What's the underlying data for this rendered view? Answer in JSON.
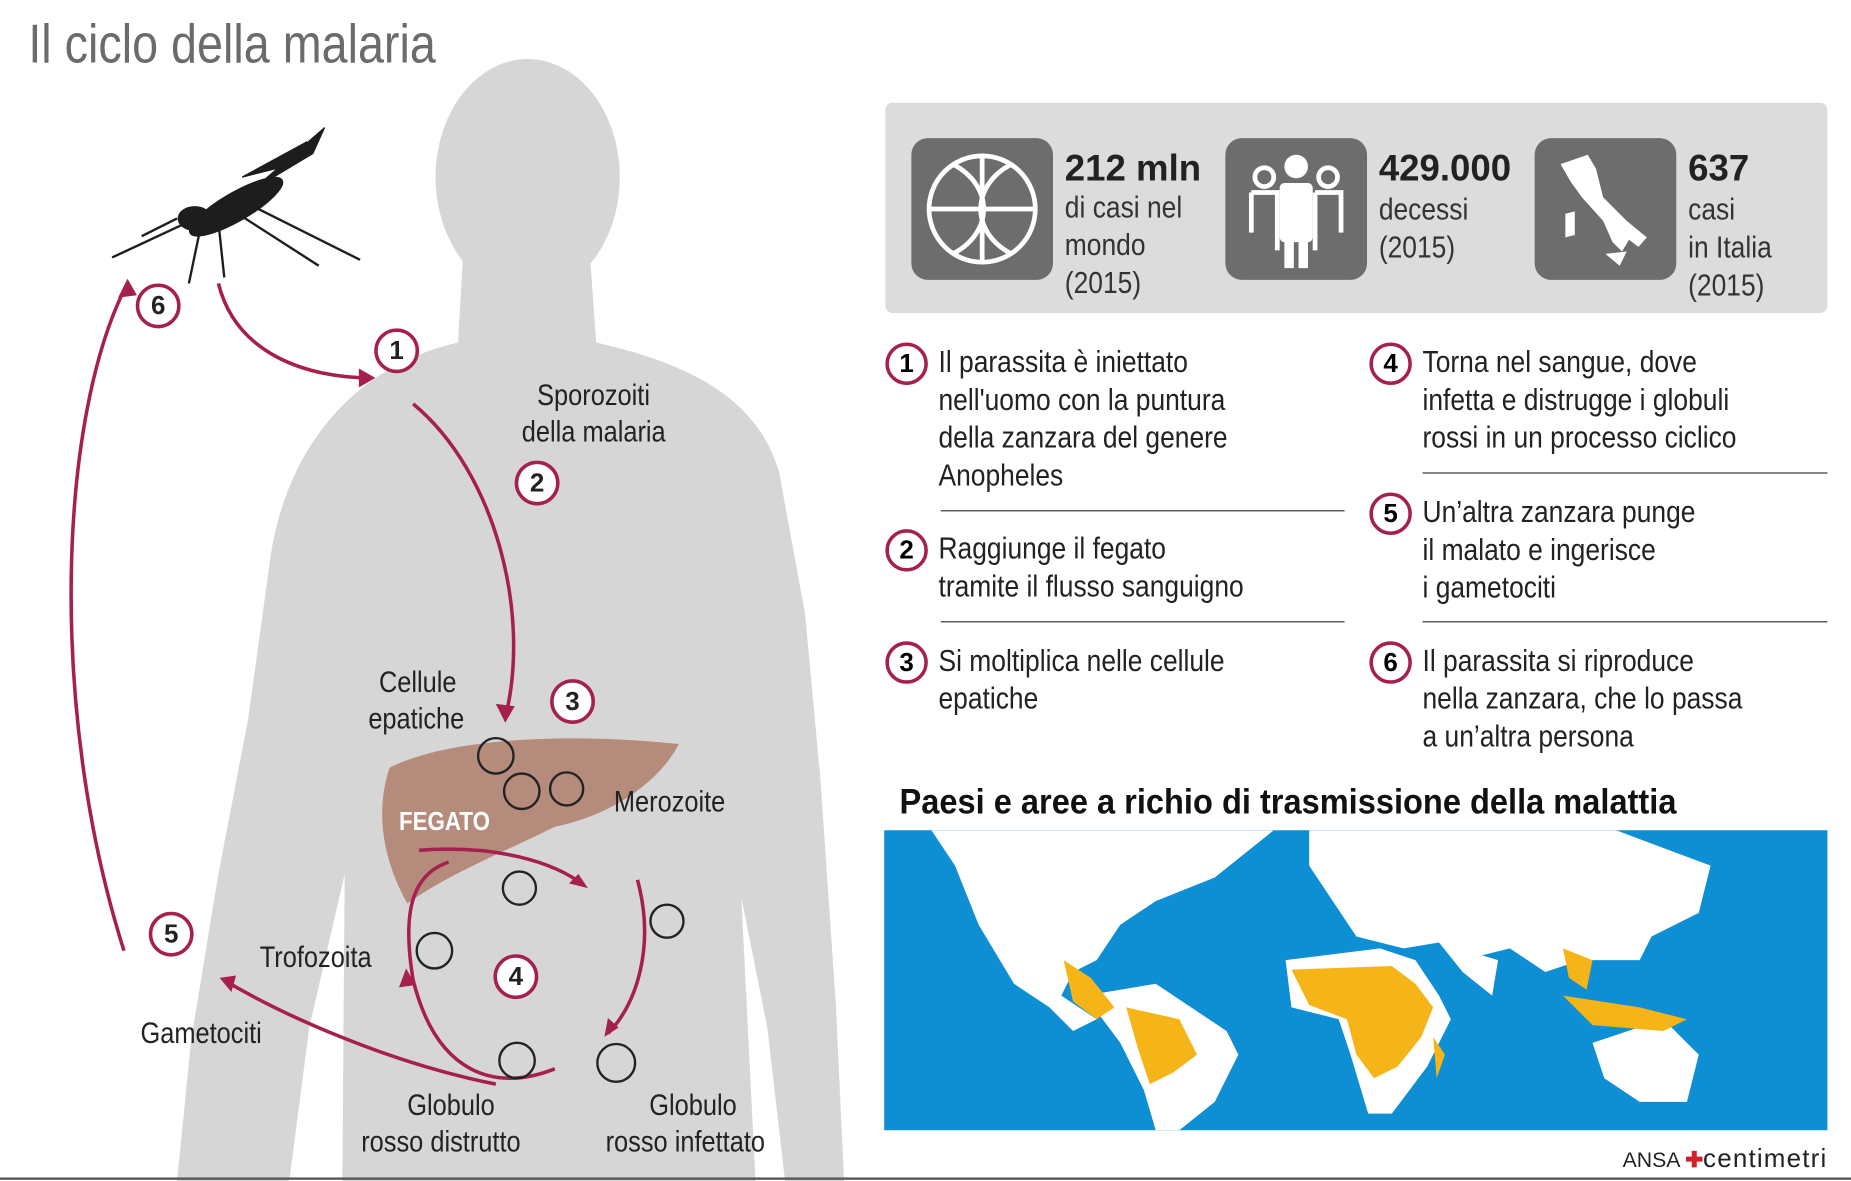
{
  "title": "Il ciclo della malaria",
  "diagram": {
    "labels": {
      "sporozoiti": "Sporozoiti",
      "sporozoiti2": "della malaria",
      "cellule": "Cellule",
      "cellule2": "epatiche",
      "fegato": "FEGATO",
      "merozoite": "Merozoite",
      "trofozoita": "Trofozoita",
      "gametociti": "Gametociti",
      "distrutto": "Globulo",
      "distrutto2": "rosso distrutto",
      "infettato": "Globulo",
      "infettato2": "rosso infettato"
    },
    "numbers": [
      "1",
      "2",
      "3",
      "4",
      "5",
      "6"
    ],
    "colors": {
      "arrow": "#a51f4f",
      "body": "#d6d6d6",
      "liver": "#b58b7c"
    }
  },
  "stats": [
    {
      "icon": "globe-icon",
      "value": "212 mln",
      "lines": [
        "di casi nel",
        "mondo",
        "(2015)"
      ]
    },
    {
      "icon": "people-icon",
      "value": "429.000",
      "lines": [
        "decessi",
        "(2015)"
      ]
    },
    {
      "icon": "italy-map-icon",
      "value": "637",
      "lines": [
        "casi",
        "in Italia",
        "(2015)"
      ]
    }
  ],
  "steps": [
    {
      "n": "1",
      "lines": [
        "Il parassita è iniettato",
        "nell'uomo con la puntura",
        "della zanzara del genere",
        "Anopheles"
      ]
    },
    {
      "n": "2",
      "lines": [
        "Raggiunge il fegato",
        "tramite il flusso sanguigno"
      ]
    },
    {
      "n": "3",
      "lines": [
        "Si moltiplica nelle cellule",
        "epatiche"
      ]
    },
    {
      "n": "4",
      "lines": [
        "Torna nel sangue, dove",
        "infetta e distrugge i globuli",
        "rossi in un processo ciclico"
      ]
    },
    {
      "n": "5",
      "lines": [
        "Un’altra zanzara punge",
        "il malato e ingerisce",
        "i gametociti"
      ]
    },
    {
      "n": "6",
      "lines": [
        "Il parassita si riproduce",
        "nella zanzara, che lo passa",
        "a un’altra persona"
      ]
    }
  ],
  "map": {
    "title": "Paesi e aree a richio di trasmissione della malattia",
    "colors": {
      "sea": "#0e8fd3",
      "land": "#ffffff",
      "risk": "#f5b418"
    }
  },
  "credit": {
    "agency": "ANSA",
    "brand": "centimetri"
  }
}
